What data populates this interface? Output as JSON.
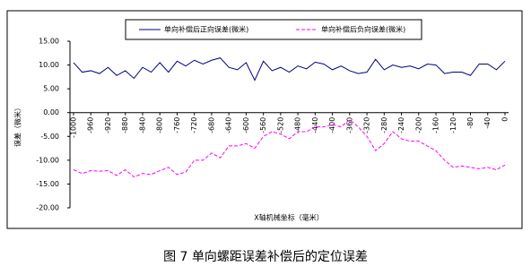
{
  "chart_data": {
    "type": "line",
    "ylabel": "误差（微米）",
    "xlabel": "X轴机械坐标（毫米）",
    "caption": "图 7 单向螺距误差补偿后的定位误差",
    "x": [
      -1000,
      -980,
      -960,
      -940,
      -920,
      -900,
      -880,
      -860,
      -840,
      -820,
      -800,
      -780,
      -760,
      -740,
      -720,
      -700,
      -680,
      -660,
      -640,
      -620,
      -600,
      -580,
      -560,
      -540,
      -520,
      -500,
      -480,
      -460,
      -440,
      -420,
      -400,
      -380,
      -360,
      -340,
      -320,
      -300,
      -280,
      -260,
      -240,
      -220,
      -200,
      -180,
      -160,
      -140,
      -120,
      -100,
      -80,
      -60,
      -40,
      -20,
      0
    ],
    "xlim": [
      -1000,
      0
    ],
    "xticks": [
      -1000,
      -960,
      -920,
      -880,
      -840,
      -800,
      -760,
      -720,
      -680,
      -640,
      -600,
      -560,
      -520,
      -480,
      -440,
      -400,
      -360,
      -320,
      -280,
      -240,
      -200,
      -160,
      -120,
      -80,
      -40,
      0
    ],
    "ylim": [
      -20,
      15
    ],
    "yticks": [
      {
        "value": 15,
        "label": "15.00"
      },
      {
        "value": 10,
        "label": "10.00"
      },
      {
        "value": 5,
        "label": "5.00"
      },
      {
        "value": 0,
        "label": "0.00"
      },
      {
        "value": -5,
        "label": "-5.00"
      },
      {
        "value": -10,
        "label": "-10.00"
      },
      {
        "value": -15,
        "label": "-15.00"
      },
      {
        "value": -20,
        "label": "-20.00"
      }
    ],
    "series": [
      {
        "name": "单向补偿后正向误差(微米)",
        "color": "#000080",
        "dashed": false,
        "values": [
          10.5,
          8.5,
          8.8,
          8.2,
          9.5,
          7.8,
          8.8,
          7.2,
          9.5,
          8.5,
          10.5,
          8.5,
          10.8,
          9.8,
          11,
          10.2,
          11,
          11.5,
          9.5,
          9,
          10.5,
          6.8,
          10.8,
          8.8,
          9.5,
          8.5,
          9.8,
          9.2,
          10.6,
          10.2,
          9,
          9.8,
          8.8,
          8.2,
          8.5,
          11.2,
          9,
          10,
          9.5,
          9.8,
          9.2,
          10.2,
          10,
          8.2,
          8.5,
          8.5,
          7.8,
          10.2,
          10.2,
          9,
          10.8
        ]
      },
      {
        "name": "单向补偿后负向误差(微米)",
        "color": "#ff00ff",
        "dashed": true,
        "values": [
          -12,
          -12.8,
          -12.2,
          -12.3,
          -12.2,
          -13.2,
          -12,
          -13.5,
          -12.8,
          -13,
          -12.2,
          -11.5,
          -13,
          -12.5,
          -10,
          -10,
          -8.5,
          -9.5,
          -7,
          -7,
          -6.5,
          -7.5,
          -5,
          -4,
          -4.5,
          -5.5,
          -4,
          -4,
          -3,
          -3,
          -2.5,
          -3,
          -1.5,
          -3,
          -5,
          -8,
          -6.5,
          -4,
          -5.5,
          -6,
          -6,
          -7,
          -8,
          -10,
          -11.5,
          -11.2,
          -11.5,
          -11.8,
          -11.5,
          -12,
          -11
        ]
      }
    ]
  }
}
